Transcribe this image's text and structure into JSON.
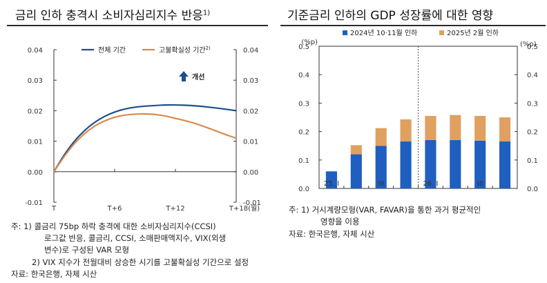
{
  "left": {
    "title": "금리 인하 충격시 소비자심리지수 반응",
    "title_sup": "1)",
    "notes": [
      "주:  1) 콜금리 75bp 하락 충격에 대한 소비자심리지수(CCSI)",
      "로그값 반응, 콜금리, CCSI, 소매판매액지수, VIX(외생",
      "변수)로 구성된 VAR 모형",
      "2) VIX 지수가 전월대비 상승한 시기를 고불확실성 기간으로 설정",
      "자료: 한국은행, 자체 시산"
    ]
  },
  "right": {
    "title": "기준금리 인하의 GDP 성장률에 대한 영향",
    "notes": [
      "주:  1) 거시계량모형(VAR, FAVAR)을 통한 과거 평균적인",
      "영향을 이용",
      "자료: 한국은행, 자체 시산"
    ]
  },
  "chart_data": [
    {
      "type": "line",
      "x_tick_labels": [
        "T",
        "T+6",
        "T+12",
        "T+18(월)"
      ],
      "x": [
        0,
        1,
        2,
        3,
        4,
        5,
        6,
        7,
        8,
        9,
        10,
        11,
        12,
        13,
        14,
        15,
        16,
        17,
        18
      ],
      "ylim": [
        -0.01,
        0.04
      ],
      "y_ticks": [
        "-0.01",
        "0.00",
        "0.01",
        "0.02",
        "0.03",
        "0.04"
      ],
      "y_ticks_right": [
        "-0.01",
        "0.00",
        "0.01",
        "0.02",
        "0.03",
        "0.04"
      ],
      "series": [
        {
          "name": "전체 기간",
          "color": "#1f4e8c",
          "values": [
            0.0,
            0.0055,
            0.01,
            0.0135,
            0.0162,
            0.0182,
            0.0196,
            0.0206,
            0.0212,
            0.0215,
            0.0217,
            0.0219,
            0.0219,
            0.0218,
            0.0216,
            0.0213,
            0.0209,
            0.0205,
            0.02
          ]
        },
        {
          "name": "고불확실성 기간",
          "name_sup": "2)",
          "color": "#d98b4a",
          "values": [
            0.0,
            0.005,
            0.0092,
            0.0125,
            0.015,
            0.0167,
            0.0179,
            0.0186,
            0.0189,
            0.019,
            0.0188,
            0.0183,
            0.0175,
            0.0167,
            0.0158,
            0.0146,
            0.0134,
            0.0121,
            0.011
          ]
        }
      ],
      "annotation": "개선",
      "grid": false
    },
    {
      "type": "bar",
      "stacked": true,
      "unit_left": "(%p)",
      "unit_right": "(%p)",
      "categories": [
        "25. I",
        "II",
        "III",
        "IV",
        "26. I",
        "II",
        "III",
        "IV"
      ],
      "x_tick_labels": [
        "25. I",
        "",
        "III",
        "",
        "26. I",
        "",
        "III",
        ""
      ],
      "ylim": [
        0,
        0.5
      ],
      "y_ticks": [
        "0.0",
        "0.1",
        "0.2",
        "0.3",
        "0.4",
        "0.5"
      ],
      "series": [
        {
          "name": "2024년 10·11월 인하",
          "color": "#1f5fbf",
          "values": [
            0.06,
            0.12,
            0.15,
            0.165,
            0.17,
            0.17,
            0.168,
            0.165
          ]
        },
        {
          "name": "2025년 2월 인하",
          "color": "#e0a060",
          "values": [
            0.0,
            0.032,
            0.062,
            0.078,
            0.085,
            0.088,
            0.087,
            0.085
          ]
        }
      ],
      "divider_after_category": 3,
      "grid": false
    }
  ]
}
